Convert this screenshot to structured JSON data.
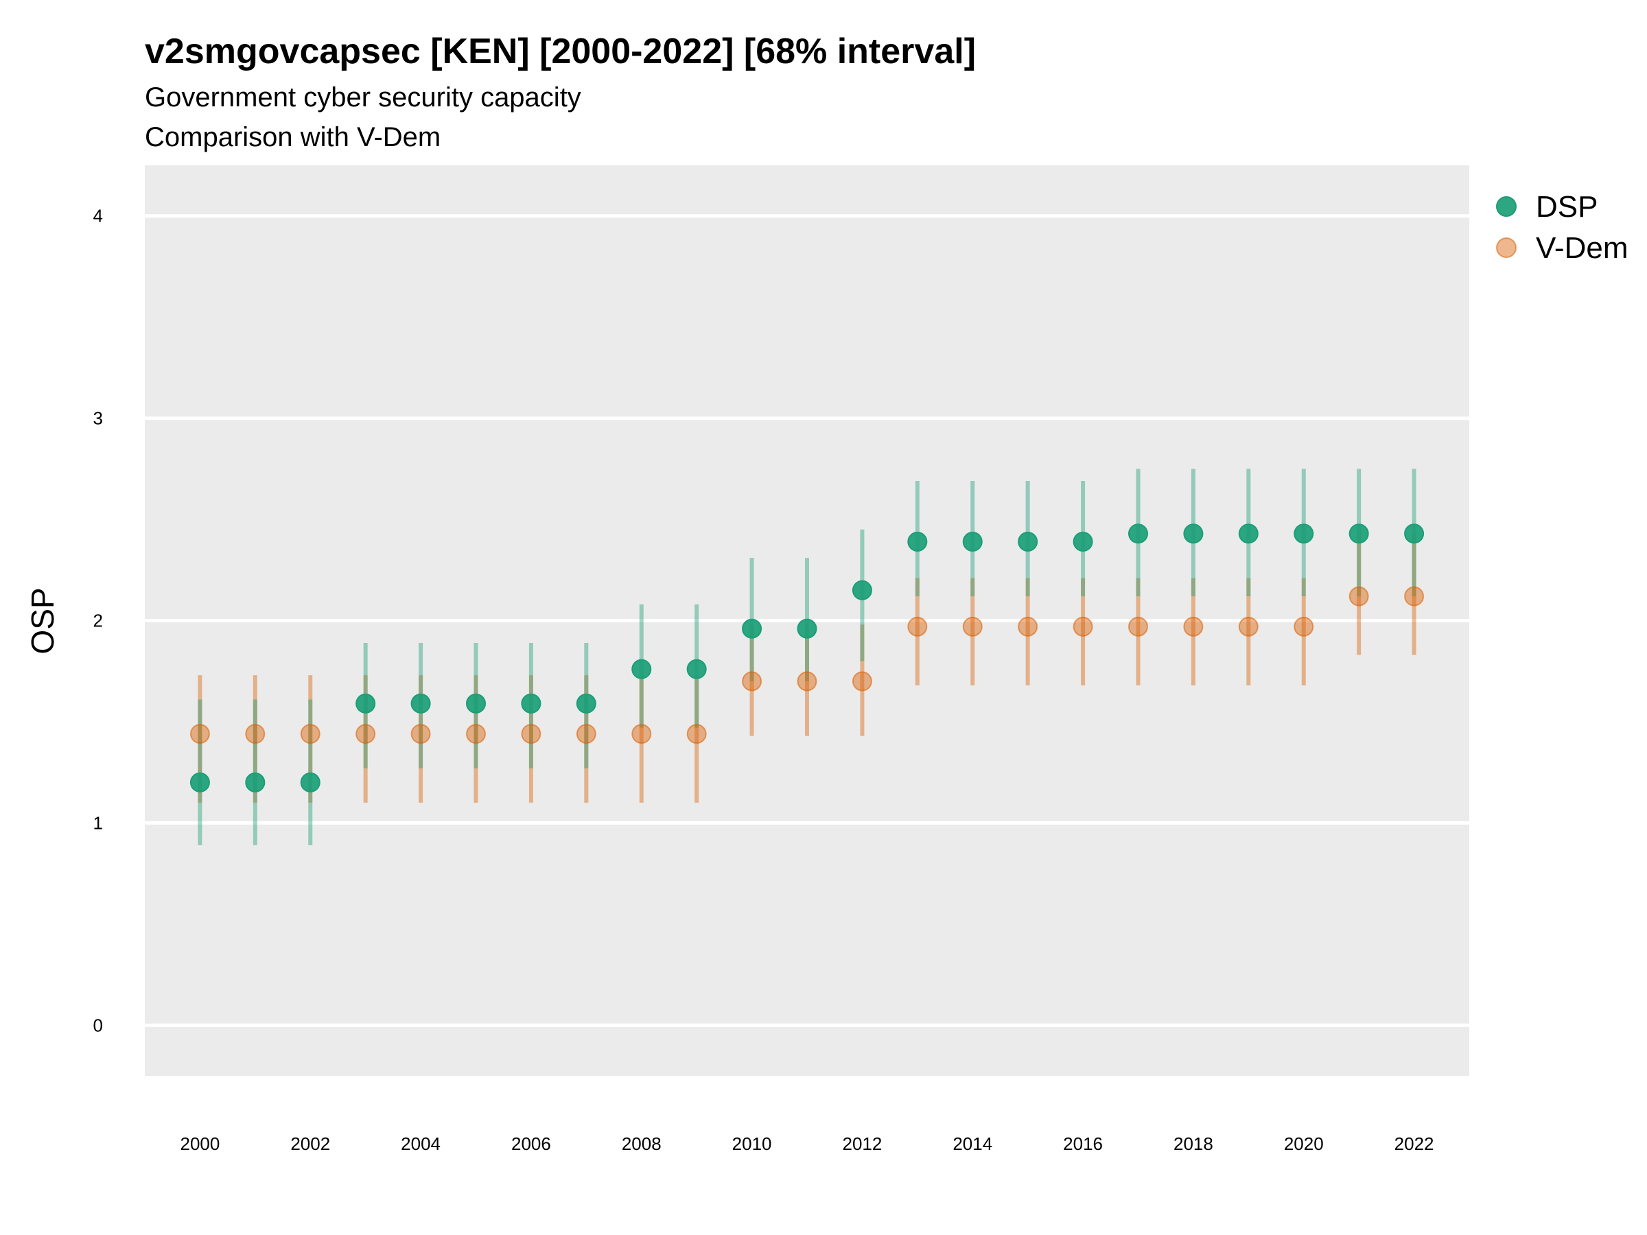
{
  "chart_data": {
    "type": "scatter",
    "title": "v2smgovcapsec [KEN] [2000-2022] [68% interval]",
    "subtitle_lines": [
      "Government cyber security capacity",
      "Comparison with V-Dem"
    ],
    "xlabel": "",
    "ylabel": "OSP",
    "ylim": [
      -0.25,
      4.25
    ],
    "xlim": [
      1999,
      2023
    ],
    "y_ticks": [
      "0",
      "1",
      "2",
      "3",
      "4"
    ],
    "x_ticks": [
      "2000",
      "2002",
      "2004",
      "2006",
      "2008",
      "2010",
      "2012",
      "2014",
      "2016",
      "2018",
      "2020",
      "2022"
    ],
    "grid": "horizontal",
    "legend_position": "right",
    "x": [
      2000,
      2001,
      2002,
      2003,
      2004,
      2005,
      2006,
      2007,
      2008,
      2009,
      2010,
      2011,
      2012,
      2013,
      2014,
      2015,
      2016,
      2017,
      2018,
      2019,
      2020,
      2021,
      2022
    ],
    "series": [
      {
        "name": "DSP",
        "color": "#1b9e77",
        "values": [
          1.2,
          1.2,
          1.2,
          1.59,
          1.59,
          1.59,
          1.59,
          1.59,
          1.76,
          1.76,
          1.96,
          1.96,
          2.15,
          2.39,
          2.39,
          2.39,
          2.39,
          2.43,
          2.43,
          2.43,
          2.43,
          2.43,
          2.43
        ],
        "lower": [
          0.89,
          0.89,
          0.89,
          1.27,
          1.27,
          1.27,
          1.27,
          1.27,
          1.47,
          1.47,
          1.7,
          1.7,
          1.8,
          2.12,
          2.12,
          2.12,
          2.12,
          2.12,
          2.12,
          2.12,
          2.12,
          2.12,
          2.12
        ],
        "upper": [
          1.61,
          1.61,
          1.61,
          1.89,
          1.89,
          1.89,
          1.89,
          1.89,
          2.08,
          2.08,
          2.31,
          2.31,
          2.45,
          2.69,
          2.69,
          2.69,
          2.69,
          2.75,
          2.75,
          2.75,
          2.75,
          2.75,
          2.75
        ]
      },
      {
        "name": "V-Dem",
        "color": "#d95f02",
        "values": [
          1.44,
          1.44,
          1.44,
          1.44,
          1.44,
          1.44,
          1.44,
          1.44,
          1.44,
          1.44,
          1.7,
          1.7,
          1.7,
          1.97,
          1.97,
          1.97,
          1.97,
          1.97,
          1.97,
          1.97,
          1.97,
          2.12,
          2.12
        ],
        "lower": [
          1.1,
          1.1,
          1.1,
          1.1,
          1.1,
          1.1,
          1.1,
          1.1,
          1.1,
          1.1,
          1.43,
          1.43,
          1.43,
          1.68,
          1.68,
          1.68,
          1.68,
          1.68,
          1.68,
          1.68,
          1.68,
          1.83,
          1.83
        ],
        "upper": [
          1.73,
          1.73,
          1.73,
          1.73,
          1.73,
          1.73,
          1.73,
          1.73,
          1.73,
          1.73,
          1.98,
          1.98,
          1.98,
          2.21,
          2.21,
          2.21,
          2.21,
          2.21,
          2.21,
          2.21,
          2.21,
          2.43,
          2.43
        ]
      }
    ]
  }
}
